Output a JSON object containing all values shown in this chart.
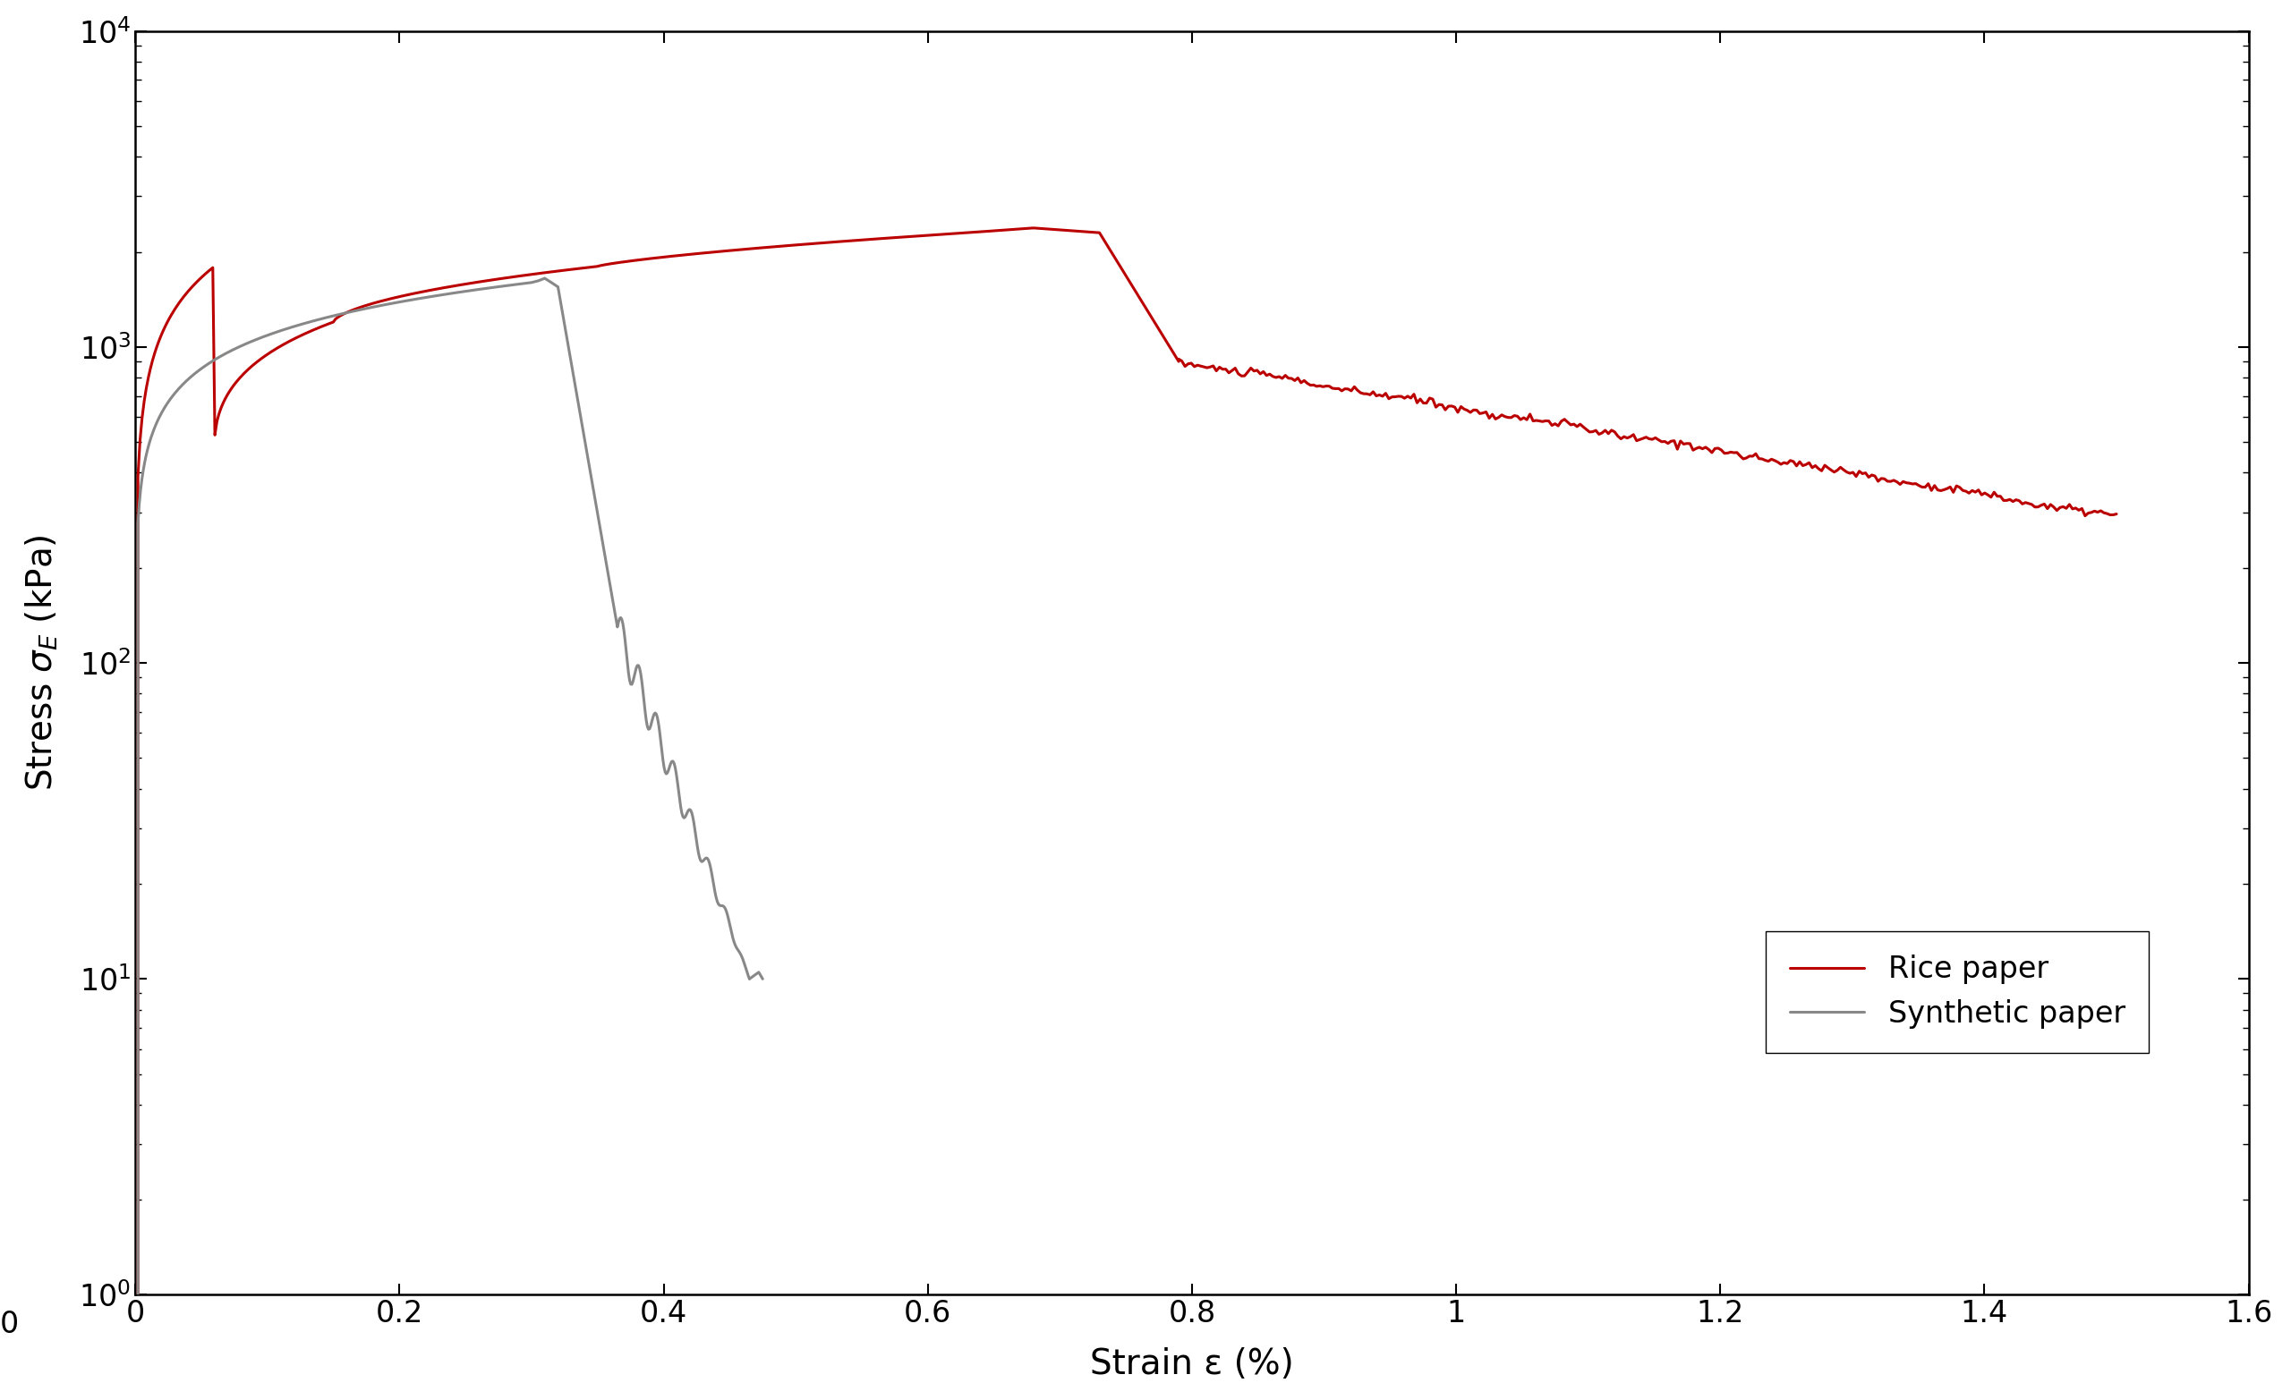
{
  "title": "",
  "xlabel": "Strain ε (%)",
  "ylabel": "Stress σ_E (kPa)",
  "xlim": [
    0,
    1.6
  ],
  "ylim_log_min": 1,
  "ylim_log_max": 10000,
  "xticks": [
    0,
    0.2,
    0.4,
    0.6,
    0.8,
    1.0,
    1.2,
    1.4,
    1.6
  ],
  "background_color": "#ffffff",
  "synthetic_color": "#888888",
  "rice_color": "#bb0000",
  "legend_labels": [
    "Synthetic paper",
    "Rice paper"
  ],
  "linewidth": 2.2
}
